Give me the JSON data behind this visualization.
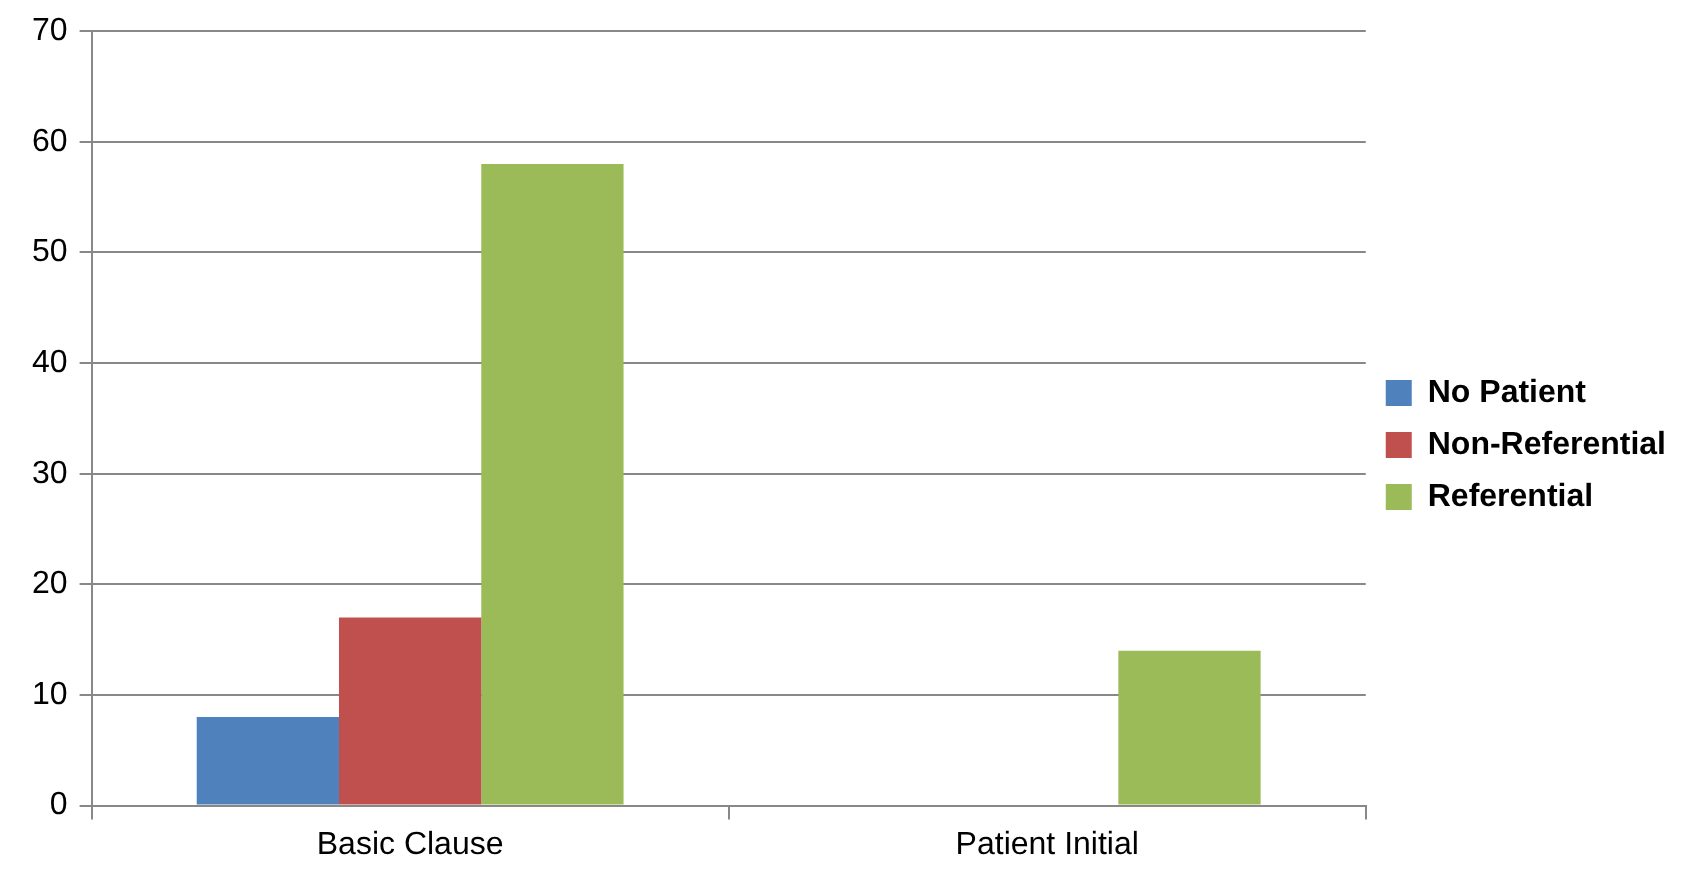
{
  "chart_data": {
    "type": "bar",
    "categories": [
      "Basic Clause",
      "Patient Initial"
    ],
    "series": [
      {
        "name": "No Patient",
        "color": "#4f81bd",
        "values": [
          8,
          0
        ]
      },
      {
        "name": "Non-Referential",
        "color": "#c0504d",
        "values": [
          17,
          0
        ]
      },
      {
        "name": "Referential",
        "color": "#9bbb59",
        "values": [
          58,
          14
        ]
      }
    ],
    "ylim": [
      0,
      70
    ],
    "yticks": [
      0,
      10,
      20,
      30,
      40,
      50,
      60,
      70
    ],
    "grid": "y",
    "legend": "right"
  }
}
